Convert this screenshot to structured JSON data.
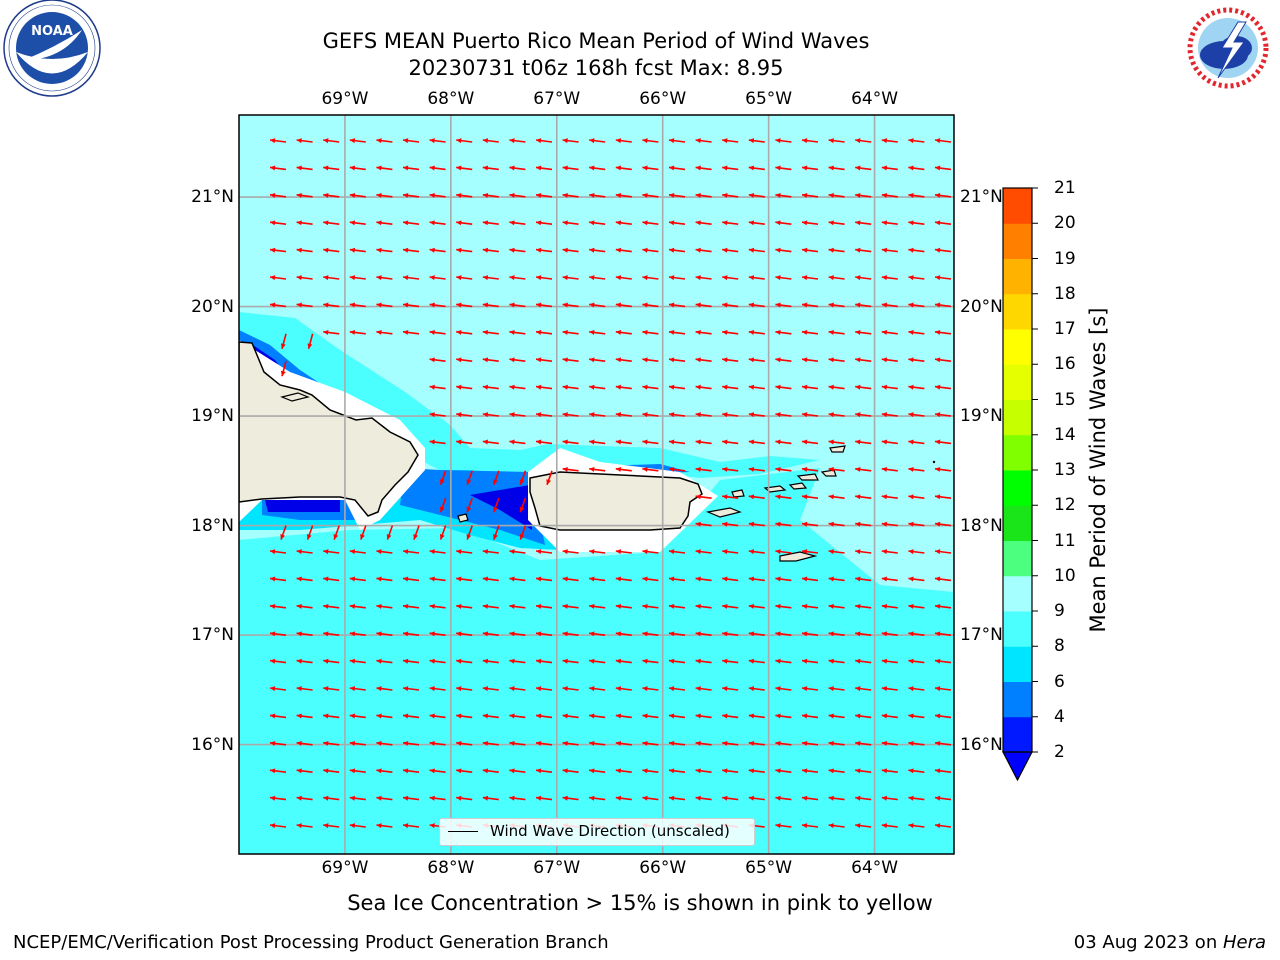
{
  "header": {
    "title_line1": "GEFS MEAN Puerto Rico Mean Period of Wind Waves",
    "title_line2": "20230731 t06z 168h fcst   Max: 8.95"
  },
  "logos": {
    "left": "noaa-logo",
    "right": "nws-logo"
  },
  "map": {
    "lon_labels": [
      "69°W",
      "68°W",
      "67°W",
      "66°W",
      "65°W",
      "64°W"
    ],
    "lat_labels": [
      "21°N",
      "20°N",
      "19°N",
      "18°N",
      "17°N",
      "16°N"
    ],
    "extent": {
      "lon": [
        -70.0,
        -63.25
      ],
      "lat": [
        15.0,
        21.75
      ]
    },
    "gridlines": true,
    "vector_direction": "westward",
    "legend_label": "Wind Wave Direction (unscaled)",
    "legend_placement": "bottom-center",
    "features": [
      "Hispaniola",
      "Puerto Rico",
      "Vieques",
      "Culebra",
      "Virgin Islands",
      "St. Croix"
    ]
  },
  "colorbar": {
    "label": "Mean Period of Wind Waves [s]",
    "ticks": [
      "2",
      "4",
      "6",
      "8",
      "9",
      "10",
      "11",
      "12",
      "13",
      "14",
      "15",
      "16",
      "17",
      "18",
      "19",
      "20",
      "21"
    ],
    "colors": [
      "#0019ff",
      "#007fff",
      "#00e5ff",
      "#4cffff",
      "#a5ffff",
      "#4cff7f",
      "#19e519",
      "#00ff00",
      "#7fff00",
      "#c6ff00",
      "#e5ff00",
      "#ffff00",
      "#ffd700",
      "#ffb300",
      "#ff8000",
      "#ff4c00",
      "#ff1900",
      "#ff0000"
    ],
    "extend_color": "#0000ff"
  },
  "colors": {
    "ocean_light": "#a5ffff",
    "ocean_medium": "#4cffff",
    "ocean_cyan": "#00e5ff",
    "ocean_blue": "#007fff",
    "ocean_dark": "#0000e8",
    "land": "#eeecdc",
    "arrow": "#ff0000"
  },
  "footer": {
    "note": "Sea Ice Concentration > 15% is shown in pink to yellow",
    "credit_left": "NCEP/EMC/Verification Post Processing Product Generation Branch",
    "credit_right_prefix": "03 Aug 2023 on ",
    "credit_right_host": "Hera"
  }
}
